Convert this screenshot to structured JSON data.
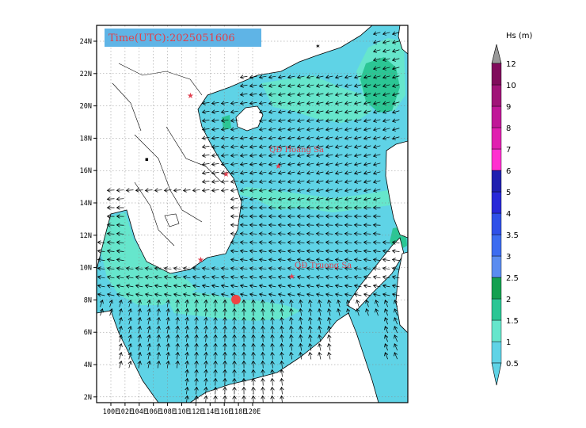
{
  "map": {
    "time_label": "Time(UTC):2025051606",
    "lat_ticks": [
      "24N",
      "22N",
      "20N",
      "18N",
      "16N",
      "14N",
      "12N",
      "10N",
      "8N",
      "6N",
      "4N",
      "2N"
    ],
    "lon_ticks": [
      "100E",
      "102E",
      "104E",
      "106E",
      "108E",
      "110E",
      "112E",
      "114E",
      "116E",
      "118E",
      "120E"
    ],
    "places": [
      {
        "label": "QĐ Hoang Sa",
        "marker": "star"
      },
      {
        "label": "QĐ Truong Sa",
        "marker": "star"
      }
    ],
    "colors": {
      "sea_light": "#5fd3e6",
      "sea_band": "#66e6cc",
      "sea_dark": "#2bc694",
      "land": "#ffffff",
      "marker": "#ef4444"
    }
  },
  "colorbar": {
    "title": "Hs (m)",
    "levels": [
      "0.5",
      "1",
      "1.5",
      "2",
      "2.5",
      "3",
      "3.5",
      "4",
      "5",
      "6",
      "7",
      "8",
      "9",
      "10",
      "12"
    ],
    "colors": [
      "#5fd3e6",
      "#66e6cc",
      "#2bc694",
      "#14a050",
      "#5a8cf0",
      "#3c6cf0",
      "#2f50e8",
      "#2828d8",
      "#2020b0",
      "#ff30d0",
      "#e020b0",
      "#c01898",
      "#a01478",
      "#800c5c",
      "#600844"
    ],
    "tip_top": "#999999",
    "tip_bottom": "#5fd3e6"
  }
}
